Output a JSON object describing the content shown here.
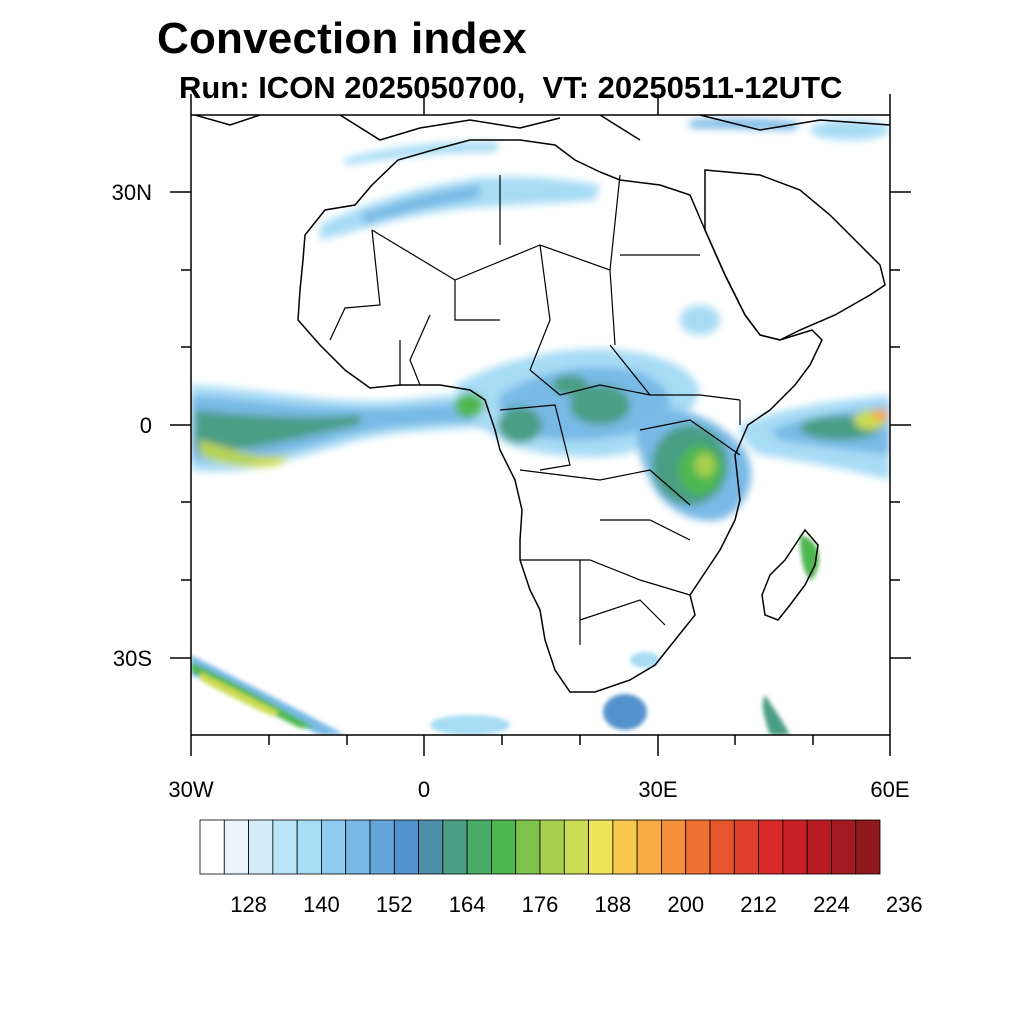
{
  "title": "Convection index",
  "subtitle": "Run: ICON 2025050700,  VT: 20250511-12UTC",
  "axes": {
    "lat_labels": [
      "30N",
      "0",
      "30S"
    ],
    "lon_labels": [
      "30W",
      "0",
      "30E",
      "60E"
    ]
  },
  "colorbar": {
    "labels": [
      "128",
      "140",
      "152",
      "164",
      "176",
      "188",
      "200",
      "212",
      "224",
      "236"
    ],
    "colors": [
      "#ffffff",
      "#eaf5fc",
      "#d3eefa",
      "#bde5f8",
      "#a7dcf5",
      "#8fcbef",
      "#79b9e6",
      "#65a6dc",
      "#5393cd",
      "#4f8fa8",
      "#4a9e84",
      "#49ad67",
      "#4fb74f",
      "#7cc24c",
      "#a8cf4f",
      "#cbdb52",
      "#eee55a",
      "#f6c94e",
      "#f8ac43",
      "#f5903b",
      "#ef7132",
      "#e6562c",
      "#de3e2a",
      "#d92a29",
      "#c91f27",
      "#b81b24",
      "#a41a21",
      "#8f191d"
    ]
  },
  "map_data": {
    "region": "Africa and surrounding oceans",
    "lon_range": [
      -30,
      60
    ],
    "lat_range": [
      -40,
      40
    ],
    "field": "Convection index",
    "units": "",
    "max_regions": [
      "equatorial Atlantic",
      "Central Africa",
      "Lake Victoria / Tanzania",
      "western Indian Ocean",
      "northwest Africa jet band",
      "South Atlantic southwest"
    ]
  }
}
